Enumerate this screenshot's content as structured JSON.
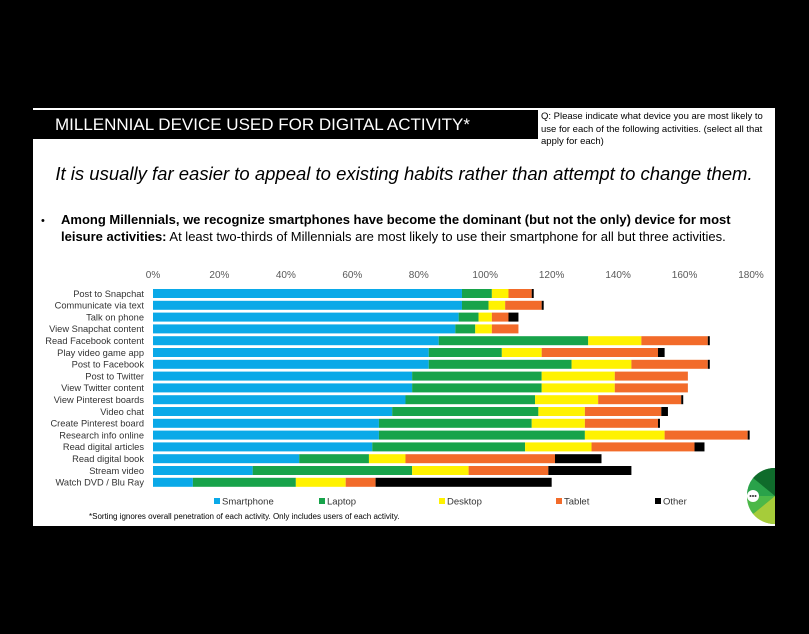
{
  "header": {
    "title": "MILLENNIAL DEVICE USED FOR DIGITAL ACTIVITY*",
    "question": "Q: Please indicate what device you are most likely to use for each of the following activities. (select all that apply for each)"
  },
  "tagline": "It is usually far easier to appeal to existing habits rather than attempt to change them.",
  "bullet": {
    "bold": "Among Millennials, we recognize smartphones have become the dominant (but not the only) device for most leisure activities:",
    "rest": "At least two-thirds of Millennials are most likely to use their smartphone for all but three activities."
  },
  "footnote": "*Sorting ignores overall penetration of each activity.   Only includes users of each activity.",
  "colors": {
    "Smartphone": "#0aa9e8",
    "Laptop": "#17a34a",
    "Desktop": "#fff200",
    "Tablet": "#f26b2a",
    "Other": "#000000"
  },
  "chart_data": {
    "type": "bar",
    "orientation": "horizontal",
    "stacked": true,
    "title": "",
    "xlabel": "",
    "ylabel": "",
    "xlim": [
      0,
      180
    ],
    "xticks": [
      "0%",
      "20%",
      "40%",
      "60%",
      "80%",
      "100%",
      "120%",
      "140%",
      "160%",
      "180%"
    ],
    "xtick_values": [
      0,
      20,
      40,
      60,
      80,
      100,
      120,
      140,
      160,
      180
    ],
    "categories": [
      "Post to Snapchat",
      "Communicate via text",
      "Talk on phone",
      "View Snapchat content",
      "Read Facebook content",
      "Play video game app",
      "Post to Facebook",
      "Post to Twitter",
      "View Twitter content",
      "View Pinterest boards",
      "Video chat",
      "Create Pinterest board",
      "Research info online",
      "Read digital articles",
      "Read digital book",
      "Stream video",
      "Watch DVD / Blu Ray"
    ],
    "series": [
      {
        "name": "Smartphone",
        "values": [
          93,
          93,
          92,
          91,
          86,
          83,
          83,
          78,
          78,
          76,
          72,
          68,
          68,
          66,
          44,
          30,
          12
        ]
      },
      {
        "name": "Laptop",
        "values": [
          9,
          8,
          6,
          6,
          45,
          22,
          43,
          39,
          39,
          39,
          44,
          46,
          62,
          46,
          21,
          48,
          31
        ]
      },
      {
        "name": "Desktop",
        "values": [
          5,
          5,
          4,
          5,
          16,
          12,
          18,
          22,
          22,
          19,
          14,
          16,
          24,
          20,
          11,
          17,
          15
        ]
      },
      {
        "name": "Tablet",
        "values": [
          7,
          11,
          5,
          8,
          20,
          35,
          23,
          22,
          22,
          25,
          23,
          22,
          25,
          31,
          45,
          24,
          9
        ]
      },
      {
        "name": "Other",
        "values": [
          0.6,
          0.6,
          3,
          0,
          0.6,
          2,
          0.6,
          0,
          0,
          0.6,
          2,
          0.6,
          0.6,
          3,
          14,
          25,
          53
        ]
      }
    ],
    "legend": [
      "Smartphone",
      "Laptop",
      "Desktop",
      "Tablet",
      "Other"
    ],
    "legend_position": "bottom",
    "grid": false
  }
}
